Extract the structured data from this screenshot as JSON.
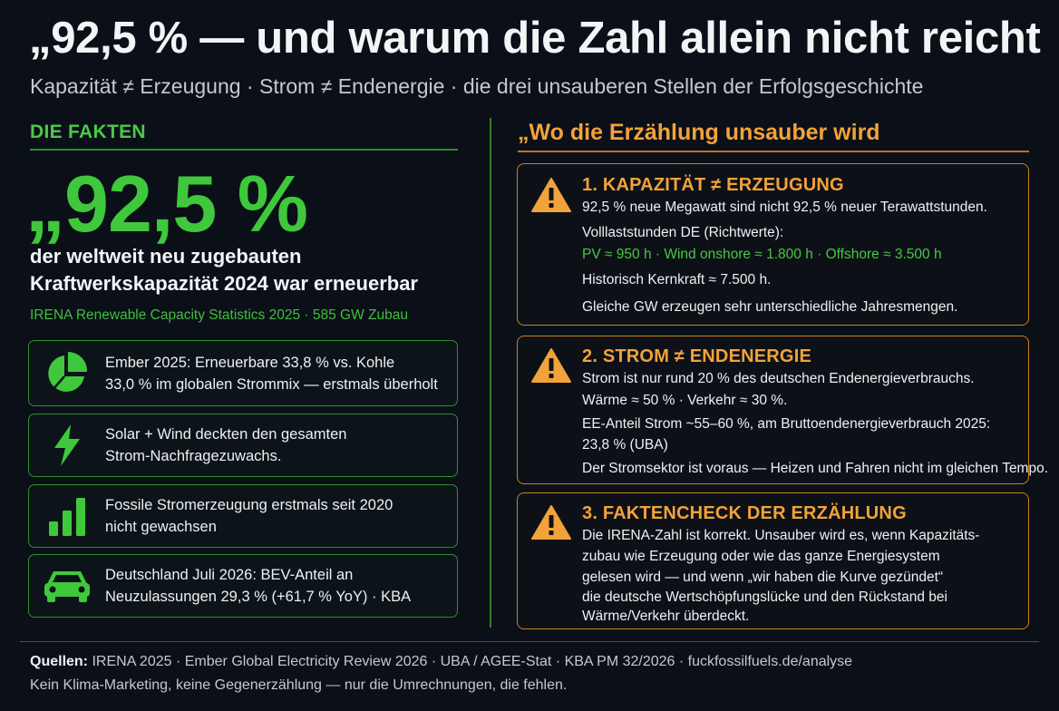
{
  "header": {
    "title": "„92,5 % — und warum die Zahl allein nicht reicht",
    "subtitle": "Kapazität ≠ Erzeugung · Strom ≠ Endenergie · die drei unsauberen Stellen der Erfolgsgeschichte"
  },
  "facts": {
    "heading": "DIE FAKTEN",
    "big_number": "„92,5 %",
    "big_desc_1": "der weltweit neu zugebauten",
    "big_desc_2": "Kraftwerkskapazität 2024 war erneuerbar",
    "source": "IRENA Renewable Capacity Statistics 2025 · 585 GW Zubau",
    "cards": [
      {
        "icon": "pie-chart-icon",
        "line1": "Ember 2025: Erneuerbare 33,8 % vs. Kohle",
        "line2": "33,0 % im globalen Strommix — erstmals überholt"
      },
      {
        "icon": "lightning-icon",
        "line1": "Solar + Wind deckten den gesamten",
        "line2": "Strom-Nachfragezuwachs."
      },
      {
        "icon": "bar-chart-icon",
        "line1": "Fossile Stromerzeugung erstmals seit 2020",
        "line2": "nicht gewachsen"
      },
      {
        "icon": "car-icon",
        "line1": "Deutschland Juli 2026: BEV-Anteil an",
        "line2": "Neuzulassungen 29,3 % (+61,7 % YoY) · KBA"
      }
    ]
  },
  "analysis": {
    "heading": "„Wo die Erzählung unsauber wird",
    "warnings": [
      {
        "title": "1. KAPAZITÄT ≠ ERZEUGUNG",
        "lines": [
          "92,5 % neue Megawatt sind nicht 92,5 % neuer Terawattstunden.",
          "Volllaststunden DE (Richtwerte):",
          "PV ≈ 950 h · Wind onshore ≈ 1.800 h · Offshore ≈ 3.500 h",
          "Historisch Kernkraft ≈ 7.500 h.",
          "Gleiche GW erzeugen sehr unterschiedliche Jahresmengen."
        ]
      },
      {
        "title": "2. STROM ≠ ENDENERGIE",
        "lines": [
          "Strom ist nur rund 20 % des deutschen Endenergieverbrauchs.",
          "Wärme ≈ 50 % · Verkehr ≈ 30 %.",
          "EE-Anteil Strom ~55–60 %, am Bruttoendenergieverbrauch 2025:",
          "23,8 % (UBA)",
          "Der Stromsektor ist voraus — Heizen und Fahren nicht im gleichen Tempo."
        ]
      },
      {
        "title": "3. FAKTENCHECK DER ERZÄHLUNG",
        "lines": [
          "Die IRENA-Zahl ist korrekt. Unsauber wird es, wenn Kapazitäts-",
          "zubau wie Erzeugung oder wie das ganze Energiesystem",
          "gelesen wird — und wenn „wir haben die Kurve gezündet“",
          "die deutsche Wertschöpfungslücke und den Rückstand bei",
          "Wärme/Verkehr überdeckt."
        ]
      }
    ]
  },
  "footer": {
    "sources_label": "Quellen:",
    "sources": "IRENA 2025 · Ember Global Electricity Review 2026 · UBA / AGEE-Stat · KBA PM 32/2026 · fuckfossilfuels.de/analyse",
    "note": "Kein Klima-Marketing, keine Gegenerzählung — nur die Umrechnungen, die fehlen."
  },
  "colors": {
    "background": "#0b1018",
    "accent_green": "#3fc83c",
    "accent_orange": "#f2a23a"
  }
}
